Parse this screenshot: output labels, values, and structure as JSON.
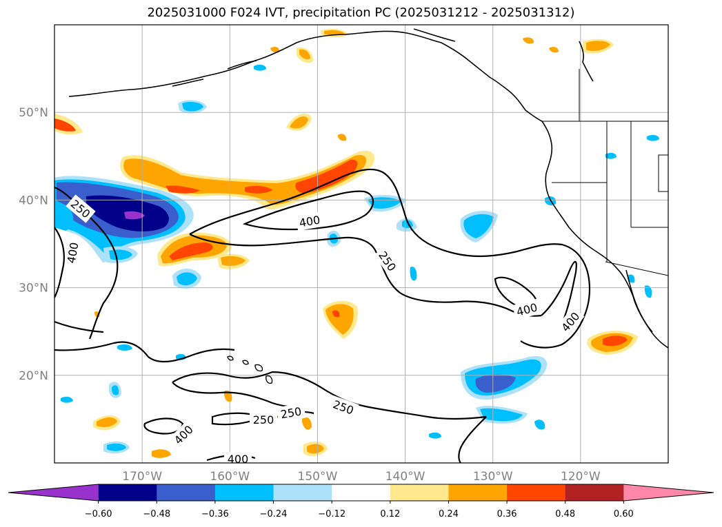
{
  "title": "2025031000 F024 IVT, precipitation PC (2025031212 - 2025031312)",
  "map": {
    "lon_range": [
      -180,
      -110
    ],
    "lat_range": [
      10,
      60
    ],
    "lon_ticks": [
      {
        "value": -170,
        "label": "170°W"
      },
      {
        "value": -160,
        "label": "160°W"
      },
      {
        "value": -150,
        "label": "150°W"
      },
      {
        "value": -140,
        "label": "140°W"
      },
      {
        "value": -130,
        "label": "130°W"
      },
      {
        "value": -120,
        "label": "120°W"
      }
    ],
    "lat_ticks": [
      {
        "value": 50,
        "label": "50°N"
      },
      {
        "value": 40,
        "label": "40°N"
      },
      {
        "value": 30,
        "label": "30°N"
      },
      {
        "value": 20,
        "label": "20°N"
      }
    ],
    "contour_labels": [
      "250",
      "400"
    ],
    "gridlines": true
  },
  "colorbar": {
    "ticks": [
      "−0.60",
      "−0.48",
      "−0.36",
      "−0.24",
      "−0.12",
      "0.12",
      "0.24",
      "0.36",
      "0.48",
      "0.60"
    ],
    "colors": [
      "#9932CC",
      "#00008B",
      "#3A5FCD",
      "#00BFFF",
      "#ADE1F9",
      "#FFFFFF",
      "#FFE98C",
      "#FFA500",
      "#FF4500",
      "#B22222",
      "#FF88AA"
    ]
  }
}
